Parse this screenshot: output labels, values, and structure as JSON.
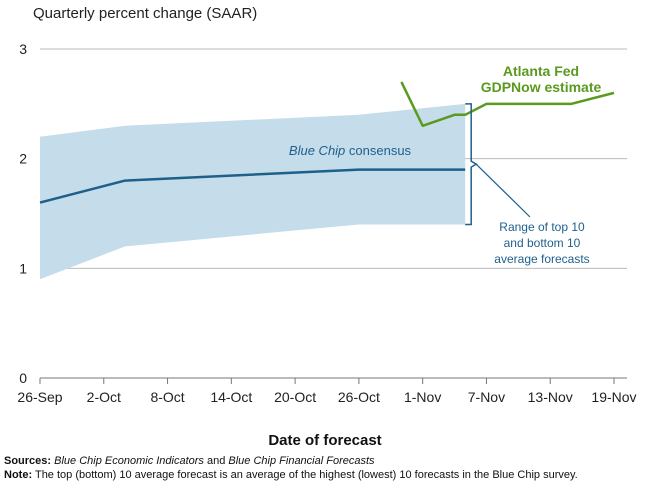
{
  "header": {
    "subtitle": "Quarterly percent change (SAAR)"
  },
  "footer": {
    "sources_label": "Sources:",
    "sources_text_1": "Blue Chip Economic Indicators",
    "sources_and": " and ",
    "sources_text_2": "Blue Chip Financial Forecasts",
    "note_label": "Note:",
    "note_text": "The top (bottom) 10 average forecast is an average of the highest (lowest) 10 forecasts in the Blue Chip survey."
  },
  "annotations": {
    "blue_chip_italic": "Blue Chip",
    "blue_chip_rest": " consensus",
    "gdpnow_line1": "Atlanta Fed",
    "gdpnow_line2": "GDPNow estimate",
    "range_line1": "Range of top 10",
    "range_line2": "and bottom 10",
    "range_line3": "average forecasts"
  },
  "colors": {
    "consensus": "#1f5f8b",
    "band": "#c5dceb",
    "gdpnow": "#5a9a1f",
    "range_text": "#1f5f8b",
    "grid": "#bbbbbb"
  },
  "chart_data": {
    "type": "line",
    "title": "",
    "subtitle": "Quarterly percent change (SAAR)",
    "xlabel": "Date of forecast",
    "ylabel": "",
    "x_tick_labels": [
      "26-Sep",
      "2-Oct",
      "8-Oct",
      "14-Oct",
      "20-Oct",
      "26-Oct",
      "1-Nov",
      "7-Nov",
      "13-Nov",
      "19-Nov"
    ],
    "x_domain": [
      "2024-09-26",
      "2024-11-19"
    ],
    "ylim": [
      0,
      3
    ],
    "y_ticks": [
      0,
      1,
      2,
      3
    ],
    "grid": true,
    "legend": "none (direct labels)",
    "series": [
      {
        "name": "Blue Chip consensus",
        "kind": "line",
        "points": [
          {
            "x": "2024-09-26",
            "y": 1.6
          },
          {
            "x": "2024-10-04",
            "y": 1.8
          },
          {
            "x": "2024-10-26",
            "y": 1.9
          },
          {
            "x": "2024-11-05",
            "y": 1.9
          }
        ]
      },
      {
        "name": "Range of top 10 and bottom 10 average forecasts",
        "kind": "band",
        "points": [
          {
            "x": "2024-09-26",
            "low": 0.9,
            "high": 2.2
          },
          {
            "x": "2024-10-04",
            "low": 1.2,
            "high": 2.3
          },
          {
            "x": "2024-10-26",
            "low": 1.4,
            "high": 2.4
          },
          {
            "x": "2024-11-05",
            "low": 1.4,
            "high": 2.5
          }
        ]
      },
      {
        "name": "Atlanta Fed GDPNow estimate",
        "kind": "line",
        "points": [
          {
            "x": "2024-10-30",
            "y": 2.7
          },
          {
            "x": "2024-11-01",
            "y": 2.3
          },
          {
            "x": "2024-11-04",
            "y": 2.4
          },
          {
            "x": "2024-11-05",
            "y": 2.4
          },
          {
            "x": "2024-11-07",
            "y": 2.5
          },
          {
            "x": "2024-11-15",
            "y": 2.5
          },
          {
            "x": "2024-11-19",
            "y": 2.6
          }
        ]
      }
    ]
  }
}
